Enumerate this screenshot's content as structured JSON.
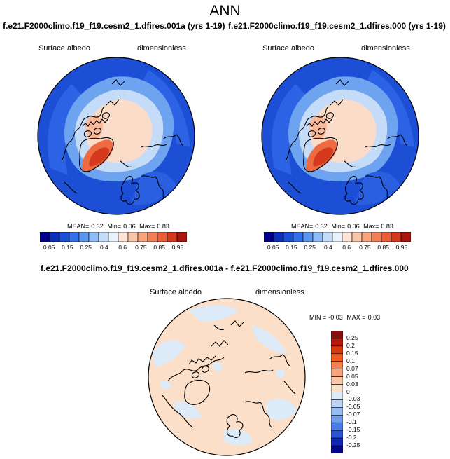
{
  "title": "ANN",
  "panels": [
    {
      "case": "f.e21.F2000climo.f19_f19.cesm2_1.dfires.001a (yrs 1-19)",
      "variable": "Surface albedo",
      "units": "dimensionless",
      "stats": {
        "mean_label": "MEAN=",
        "mean": "0.32",
        "min_label": "Min=",
        "min": "0.06",
        "max_label": "Max=",
        "max": "0.83"
      }
    },
    {
      "case": "f.e21.F2000climo.f19_f19.cesm2_1.dfires.000 (yrs 1-19)",
      "variable": "Surface albedo",
      "units": "dimensionless",
      "stats": {
        "mean_label": "MEAN=",
        "mean": "0.32",
        "min_label": "Min=",
        "min": "0.06",
        "max_label": "Max=",
        "max": "0.83"
      }
    }
  ],
  "diff_panel": {
    "case": "f.e21.F2000climo.f19_f19.cesm2_1.dfires.001a - f.e21.F2000climo.f19_f19.cesm2_1.dfires.000",
    "variable": "Surface albedo",
    "units": "dimensionless",
    "stats": {
      "min_label": "MIN =",
      "min": "-0.03",
      "max_label": "MAX =",
      "max": "0.03"
    }
  },
  "colorbar_main": {
    "colors": [
      "#00008b",
      "#0a2fb8",
      "#1a50d8",
      "#3270e8",
      "#5a96f0",
      "#8fbdf5",
      "#c4dcf8",
      "#eaf2fb",
      "#fde4d4",
      "#fac6a8",
      "#f8a47e",
      "#f4805a",
      "#ec5c38",
      "#d63a1e",
      "#a8150f"
    ],
    "labels": [
      "0.05",
      "0.15",
      "0.25",
      "0.4",
      "0.6",
      "0.75",
      "0.85",
      "0.95"
    ]
  },
  "colorbar_diff": {
    "colors": [
      "#8b0c0c",
      "#b8180c",
      "#d8380e",
      "#ee5a22",
      "#f4804e",
      "#f7a47e",
      "#f9c6a6",
      "#fbdfc9",
      "#ddeaf8",
      "#bcd4f4",
      "#98bcf0",
      "#709ee8",
      "#4a7de4",
      "#2a52d4",
      "#1028b4",
      "#00088a"
    ],
    "labels": [
      "0.25",
      "0.2",
      "0.15",
      "0.1",
      "0.07",
      "0.05",
      "0.03",
      "0",
      "-0.03",
      "-0.05",
      "-0.07",
      "-0.1",
      "-0.15",
      "-0.2",
      "-0.25"
    ]
  }
}
